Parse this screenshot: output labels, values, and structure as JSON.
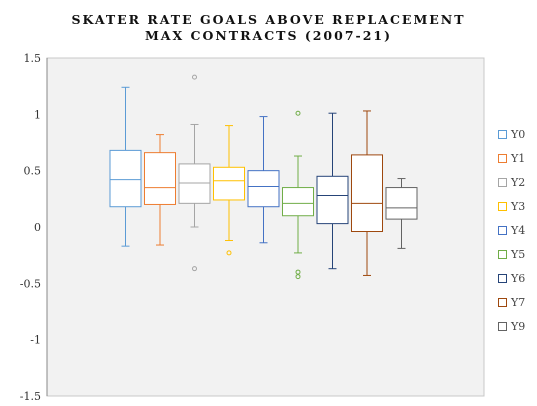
{
  "chart_data": {
    "type": "box",
    "title_lines": [
      "SKATER RATE GOALS ABOVE REPLACEMENT",
      "MAX CONTRACTS (2007-21)"
    ],
    "xlabel": "",
    "ylabel": "",
    "ylim": [
      -1.5,
      1.5
    ],
    "yticks": [
      1.5,
      1,
      0.5,
      0,
      -0.5,
      -1,
      -1.5
    ],
    "grid": false,
    "legend_position": "right",
    "series": [
      {
        "name": "Y0",
        "color": "#5b9bd5",
        "min": -0.17,
        "q1": 0.18,
        "median": 0.42,
        "q3": 0.68,
        "max": 1.24,
        "outliers": []
      },
      {
        "name": "Y1",
        "color": "#ed7d31",
        "min": -0.16,
        "q1": 0.2,
        "median": 0.35,
        "q3": 0.66,
        "max": 0.82,
        "outliers": []
      },
      {
        "name": "Y2",
        "color": "#a5a5a5",
        "min": 0.0,
        "q1": 0.21,
        "median": 0.39,
        "q3": 0.56,
        "max": 0.91,
        "outliers": [
          1.33,
          -0.37
        ]
      },
      {
        "name": "Y3",
        "color": "#ffc000",
        "min": -0.12,
        "q1": 0.24,
        "median": 0.41,
        "q3": 0.53,
        "max": 0.9,
        "outliers": [
          -0.23
        ]
      },
      {
        "name": "Y4",
        "color": "#4472c4",
        "min": -0.14,
        "q1": 0.18,
        "median": 0.36,
        "q3": 0.5,
        "max": 0.98,
        "outliers": []
      },
      {
        "name": "Y5",
        "color": "#70ad47",
        "min": -0.23,
        "q1": 0.1,
        "median": 0.21,
        "q3": 0.35,
        "max": 0.63,
        "outliers": [
          1.01,
          -0.4,
          -0.44
        ]
      },
      {
        "name": "Y6",
        "color": "#264478",
        "min": -0.37,
        "q1": 0.03,
        "median": 0.28,
        "q3": 0.45,
        "max": 1.01,
        "outliers": []
      },
      {
        "name": "Y7",
        "color": "#9e480e",
        "min": -0.43,
        "q1": -0.04,
        "median": 0.21,
        "q3": 0.64,
        "max": 1.03,
        "outliers": []
      },
      {
        "name": "Y9",
        "color": "#636363",
        "min": -0.19,
        "q1": 0.07,
        "median": 0.17,
        "q3": 0.35,
        "max": 0.43,
        "outliers": []
      }
    ]
  }
}
